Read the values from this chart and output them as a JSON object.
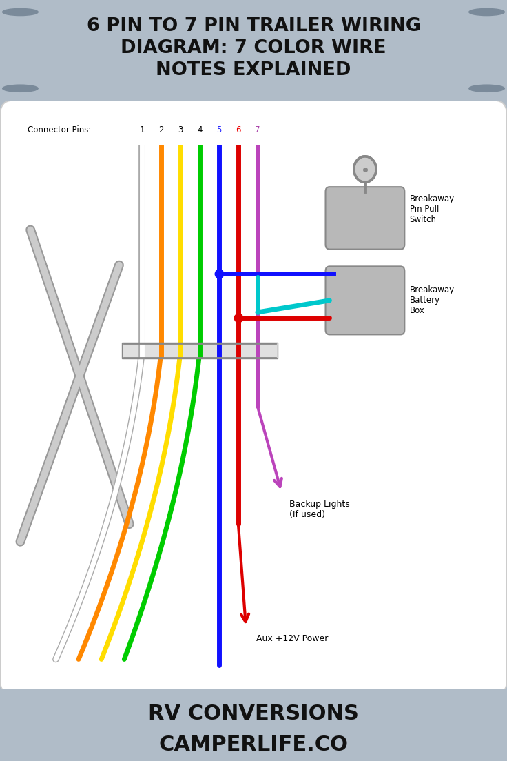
{
  "title_line1": "6 PIN TO 7 PIN TRAILER WIRING",
  "title_line2": "DIAGRAM: 7 COLOR WIRE",
  "title_line3": "NOTES EXPLAINED",
  "title_bg": "#b8c4cc",
  "footer_text1": "RV CONVERSIONS",
  "footer_text2": "CAMPERLIFE.CO",
  "footer_bg": "#a0adb8",
  "outer_bg": "#b0bcc8",
  "connector_label": "Connector Pins:",
  "pin_labels": [
    "1",
    "2",
    "3",
    "4",
    "5",
    "6",
    "7"
  ],
  "pin_text_colors": [
    "#000000",
    "#000000",
    "#000000",
    "#000000",
    "#2222ff",
    "#ee0000",
    "#aa44aa"
  ],
  "wire_colors": [
    "#ffffff",
    "#ff8800",
    "#ffdd00",
    "#00cc00",
    "#1111ff",
    "#dd0000",
    "#bb44bb"
  ],
  "wire_outline": "#888888",
  "breakaway_switch_label": "Breakaway\nPin Pull\nSwitch",
  "breakaway_battery_label": "Breakaway\nBattery\nBox",
  "backup_lights_label": "Backup Lights\n(If used)",
  "aux_power_label": "Aux +12V Power",
  "cyan_color": "#00c8cc",
  "blue_color": "#1111ff",
  "red_color": "#dd0000",
  "purple_color": "#bb44bb"
}
